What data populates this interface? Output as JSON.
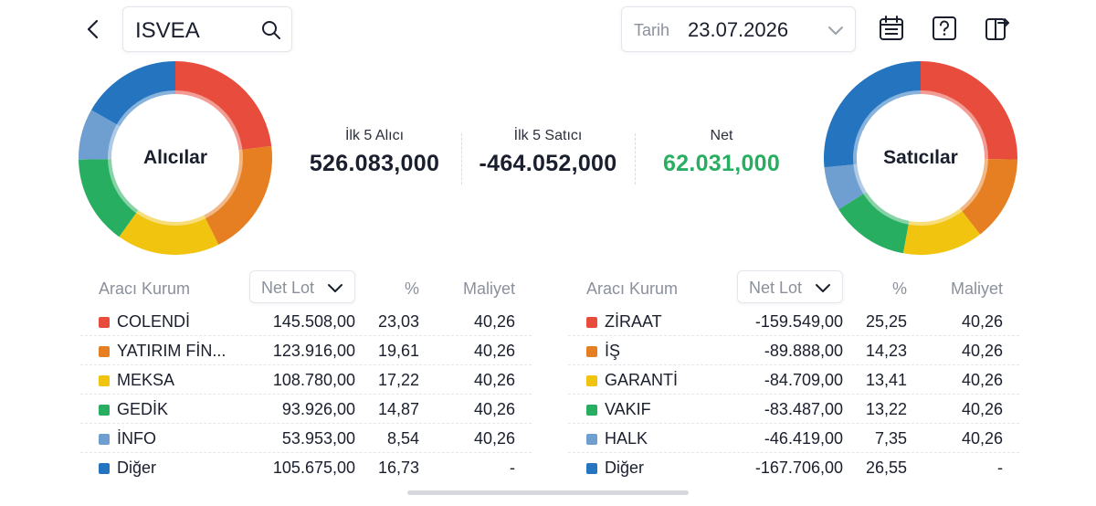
{
  "header": {
    "symbol": "ISVEA",
    "date_label": "Tarih",
    "date_value": "23.07.2026"
  },
  "icons": {
    "back": "back-chevron-icon",
    "search": "search-icon",
    "date_dropdown": "chevron-down-icon",
    "calendar": "calendar-icon",
    "help": "help-icon",
    "export": "export-icon"
  },
  "buyers_chart": {
    "center_label": "Alıcılar",
    "segments": [
      {
        "name": "COLENDİ",
        "percent": 23.03,
        "color": "#e74c3c"
      },
      {
        "name": "YATIRIM FİN...",
        "percent": 19.61,
        "color": "#e67e22"
      },
      {
        "name": "MEKSA",
        "percent": 17.22,
        "color": "#f1c40f"
      },
      {
        "name": "GEDİK",
        "percent": 14.87,
        "color": "#27ae60"
      },
      {
        "name": "İNFO",
        "percent": 8.54,
        "color": "#6f9fd0"
      },
      {
        "name": "Diğer",
        "percent": 16.73,
        "color": "#2474c0"
      }
    ]
  },
  "sellers_chart": {
    "center_label": "Satıcılar",
    "segments": [
      {
        "name": "ZİRAAT",
        "percent": 25.25,
        "color": "#e74c3c"
      },
      {
        "name": "İŞ",
        "percent": 14.23,
        "color": "#e67e22"
      },
      {
        "name": "GARANTİ",
        "percent": 13.41,
        "color": "#f1c40f"
      },
      {
        "name": "VAKIF",
        "percent": 13.22,
        "color": "#27ae60"
      },
      {
        "name": "HALK",
        "percent": 7.35,
        "color": "#6f9fd0"
      },
      {
        "name": "Diğer",
        "percent": 26.55,
        "color": "#2474c0"
      }
    ]
  },
  "summary": {
    "top5_buyers_label": "İlk 5 Alıcı",
    "top5_buyers_value": "526.083,000",
    "top5_sellers_label": "İlk 5 Satıcı",
    "top5_sellers_value": "-464.052,000",
    "net_label": "Net",
    "net_value": "62.031,000",
    "net_color": "#27ae60"
  },
  "buyers_table": {
    "col_broker": "Aracı Kurum",
    "col_sort": "Net Lot",
    "col_pct": "%",
    "col_cost": "Maliyet",
    "rows": [
      {
        "name": "COLENDİ",
        "lot": "145.508,00",
        "pct": "23,03",
        "cost": "40,26",
        "color": "#e74c3c"
      },
      {
        "name": "YATIRIM FİN...",
        "lot": "123.916,00",
        "pct": "19,61",
        "cost": "40,26",
        "color": "#e67e22"
      },
      {
        "name": "MEKSA",
        "lot": "108.780,00",
        "pct": "17,22",
        "cost": "40,26",
        "color": "#f1c40f"
      },
      {
        "name": "GEDİK",
        "lot": "93.926,00",
        "pct": "14,87",
        "cost": "40,26",
        "color": "#27ae60"
      },
      {
        "name": "İNFO",
        "lot": "53.953,00",
        "pct": "8,54",
        "cost": "40,26",
        "color": "#6f9fd0"
      },
      {
        "name": "Diğer",
        "lot": "105.675,00",
        "pct": "16,73",
        "cost": "-",
        "color": "#2474c0"
      }
    ]
  },
  "sellers_table": {
    "col_broker": "Aracı Kurum",
    "col_sort": "Net Lot",
    "col_pct": "%",
    "col_cost": "Maliyet",
    "rows": [
      {
        "name": "ZİRAAT",
        "lot": "-159.549,00",
        "pct": "25,25",
        "cost": "40,26",
        "color": "#e74c3c"
      },
      {
        "name": "İŞ",
        "lot": "-89.888,00",
        "pct": "14,23",
        "cost": "40,26",
        "color": "#e67e22"
      },
      {
        "name": "GARANTİ",
        "lot": "-84.709,00",
        "pct": "13,41",
        "cost": "40,26",
        "color": "#f1c40f"
      },
      {
        "name": "VAKIF",
        "lot": "-83.487,00",
        "pct": "13,22",
        "cost": "40,26",
        "color": "#27ae60"
      },
      {
        "name": "HALK",
        "lot": "-46.419,00",
        "pct": "7,35",
        "cost": "40,26",
        "color": "#6f9fd0"
      },
      {
        "name": "Diğer",
        "lot": "-167.706,00",
        "pct": "26,55",
        "cost": "-",
        "color": "#2474c0"
      }
    ]
  }
}
